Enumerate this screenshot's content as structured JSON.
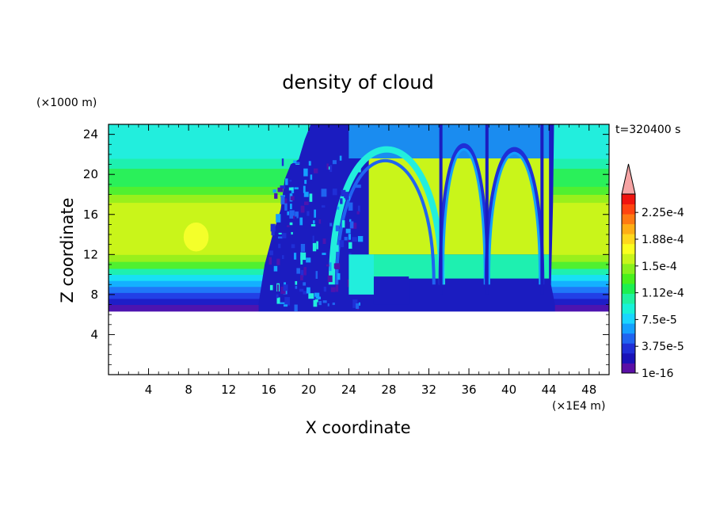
{
  "chart_data": {
    "type": "heatmap",
    "title": "density of cloud",
    "xlabel": "X coordinate",
    "ylabel": "Z coordinate",
    "x_unit": "(×1E4 m)",
    "y_unit": "(×1000 m)",
    "time_label": "t=320400 s",
    "xlim": [
      0,
      50
    ],
    "ylim": [
      0,
      25
    ],
    "x_ticks": [
      4,
      8,
      12,
      16,
      20,
      24,
      28,
      32,
      36,
      40,
      44,
      48
    ],
    "y_ticks": [
      4,
      8,
      12,
      16,
      20,
      24
    ],
    "colorbar": {
      "levels": [
        "1e-16",
        "3.75e-5",
        "7.5e-5",
        "1.12e-4",
        "1.5e-4",
        "1.88e-4",
        "2.25e-4"
      ],
      "colors": [
        "#5a0fa6",
        "#1a12b8",
        "#1f2fd6",
        "#1f64f0",
        "#14a0ff",
        "#1ad6ff",
        "#18f2d8",
        "#1ff2a0",
        "#1cf050",
        "#48f01c",
        "#88f01c",
        "#c8f51a",
        "#fbff1f",
        "#ffd81c",
        "#ffae14",
        "#ff7a12",
        "#ff4410",
        "#f0140e",
        "#f6a4a4"
      ],
      "overflow_color": "#f6a4a4"
    },
    "background_profile": [
      {
        "z_min": 6.3,
        "z_max": 7.0,
        "color": "#4d14b0"
      },
      {
        "z_min": 7.0,
        "z_max": 7.6,
        "color": "#1e1ec8"
      },
      {
        "z_min": 7.6,
        "z_max": 8.2,
        "color": "#2240e6"
      },
      {
        "z_min": 8.2,
        "z_max": 8.8,
        "color": "#1f78f8"
      },
      {
        "z_min": 8.8,
        "z_max": 9.4,
        "color": "#14b0ff"
      },
      {
        "z_min": 9.4,
        "z_max": 10.0,
        "color": "#18e0f5"
      },
      {
        "z_min": 10.0,
        "z_max": 10.6,
        "color": "#1ef0b0"
      },
      {
        "z_min": 10.6,
        "z_max": 11.3,
        "color": "#50f030"
      },
      {
        "z_min": 11.3,
        "z_max": 12.0,
        "color": "#98f01c"
      },
      {
        "z_min": 12.0,
        "z_max": 17.2,
        "color": "#c9f51a"
      },
      {
        "z_min": 17.2,
        "z_max": 18.0,
        "color": "#98f01c"
      },
      {
        "z_min": 18.0,
        "z_max": 18.8,
        "color": "#50f030"
      },
      {
        "z_min": 18.8,
        "z_max": 20.6,
        "color": "#2af05a"
      },
      {
        "z_min": 20.6,
        "z_max": 21.6,
        "color": "#1ef0b0"
      },
      {
        "z_min": 21.6,
        "z_max": 25.0,
        "color": "#22eedd"
      }
    ],
    "local_max_patch": {
      "x": [
        7.5,
        10
      ],
      "z": [
        12.3,
        15.2
      ],
      "color": "#f4ff2a"
    },
    "disturbed_region": {
      "x_range": [
        15,
        44.5
      ],
      "color": "#1b1cc0"
    }
  }
}
